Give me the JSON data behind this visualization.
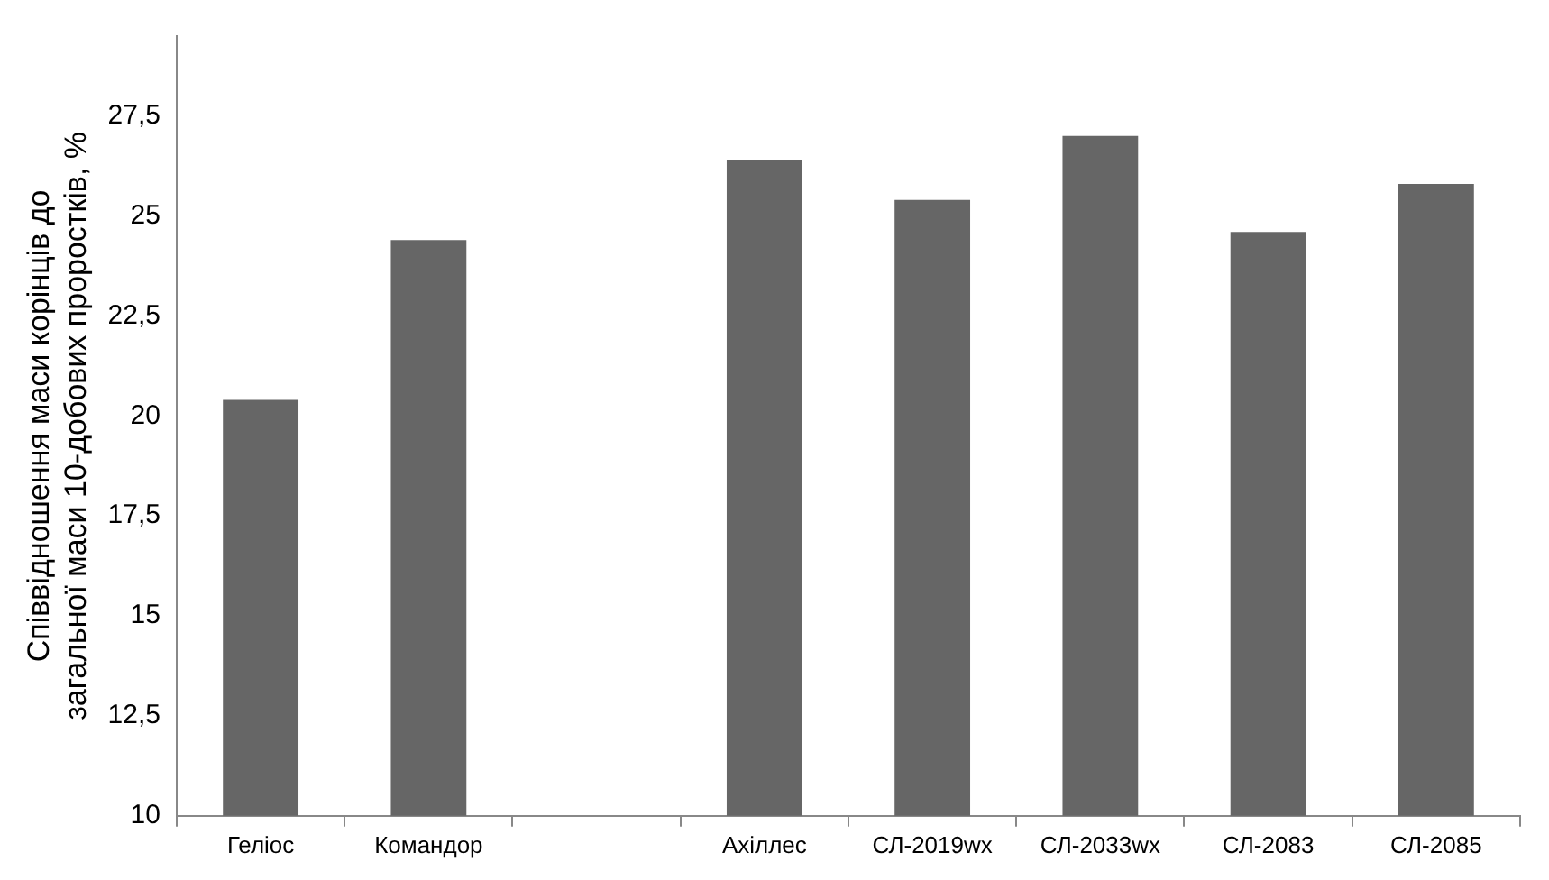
{
  "chart_data": {
    "type": "bar",
    "ylabel": "Співвідношення маси корінців до\nзагальної маси 10-добових проростків, %",
    "categories": [
      "Геліос",
      "Командор",
      null,
      "Ахіллес",
      "СЛ-2019wx",
      "СЛ-2033wx",
      "СЛ-2083",
      "СЛ-2085"
    ],
    "values": [
      20.4,
      24.4,
      null,
      26.4,
      25.4,
      27.0,
      24.6,
      25.8
    ],
    "color": "#666666",
    "ylim": [
      10,
      29.5
    ],
    "yticks": [
      10,
      {
        "value": 12.5,
        "label": "12,5"
      },
      15,
      {
        "value": 17.5,
        "label": "17,5"
      },
      20,
      {
        "value": 22.5,
        "label": "22,5"
      },
      25,
      {
        "value": 27.5,
        "label": "27,5"
      }
    ],
    "grid": false
  }
}
